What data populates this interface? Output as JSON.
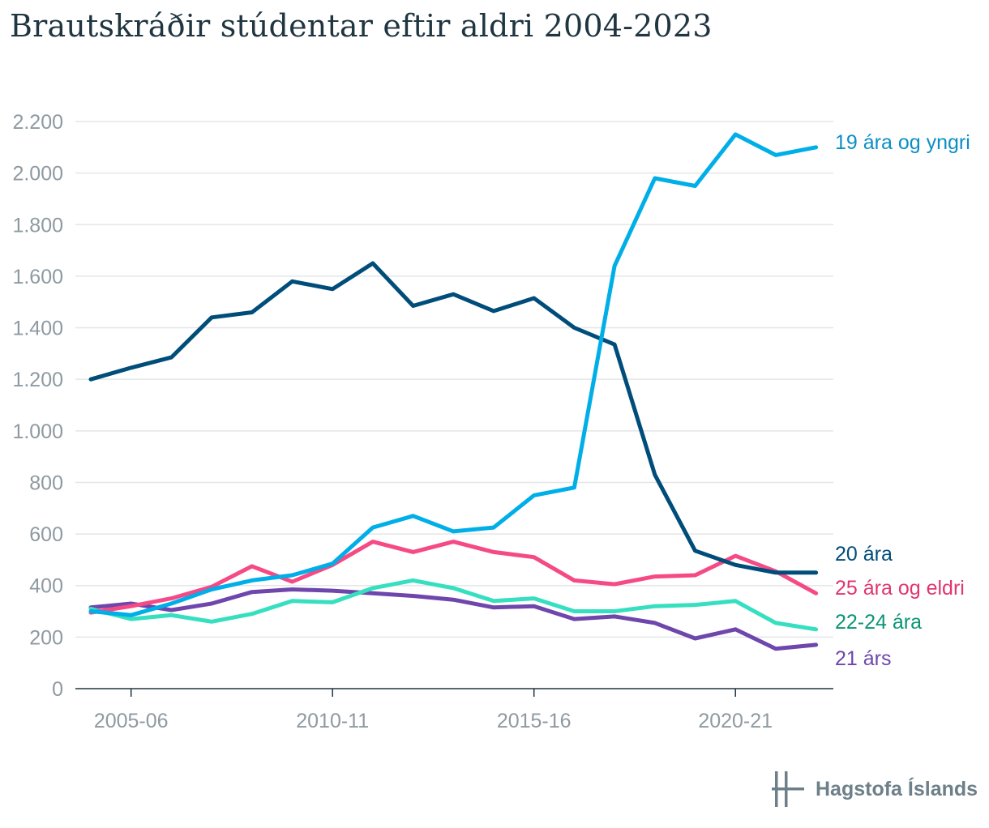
{
  "title": "Brautskráðir stúdentar eftir aldri 2004-2023",
  "logo": {
    "text": "Hagstofa Íslands"
  },
  "chart_data": {
    "type": "line",
    "title": "Brautskráðir stúdentar eftir aldri 2004-2023",
    "x": [
      "2004-05",
      "2005-06",
      "2006-07",
      "2007-08",
      "2008-09",
      "2009-10",
      "2010-11",
      "2011-12",
      "2012-13",
      "2013-14",
      "2014-15",
      "2015-16",
      "2016-17",
      "2017-18",
      "2018-19",
      "2019-20",
      "2020-21",
      "2021-22",
      "2022-23"
    ],
    "xticks": [
      "2005-06",
      "2010-11",
      "2015-16",
      "2020-21"
    ],
    "ylim": [
      0,
      2200
    ],
    "yticks": [
      0,
      200,
      400,
      600,
      800,
      1000,
      1200,
      1400,
      1600,
      1800,
      2000,
      2200
    ],
    "ytick_labels": [
      "0",
      "200",
      "400",
      "600",
      "800",
      "1.000",
      "1.200",
      "1.400",
      "1.600",
      "1.800",
      "2.000",
      "2.200"
    ],
    "grid": true,
    "legend": "inline-right",
    "series": [
      {
        "name": "19 ára og yngri",
        "color": "#00aee8",
        "label_color": "#0a8fc4",
        "values": [
          300,
          285,
          330,
          385,
          420,
          440,
          485,
          625,
          670,
          610,
          625,
          750,
          780,
          1640,
          1980,
          1950,
          2150,
          2070,
          2100
        ]
      },
      {
        "name": "20 ára",
        "color": "#004d7a",
        "label_color": "#004d7a",
        "values": [
          1200,
          1245,
          1285,
          1440,
          1460,
          1580,
          1550,
          1650,
          1485,
          1530,
          1465,
          1515,
          1400,
          1335,
          830,
          535,
          480,
          450,
          450
        ]
      },
      {
        "name": "25 ára og eldri",
        "color": "#f54a85",
        "label_color": "#e0356f",
        "values": [
          295,
          320,
          350,
          395,
          475,
          415,
          480,
          570,
          530,
          570,
          530,
          510,
          420,
          405,
          435,
          440,
          515,
          455,
          370
        ]
      },
      {
        "name": "22-24 ára",
        "color": "#36dfc0",
        "label_color": "#0a9475",
        "values": [
          310,
          270,
          285,
          260,
          290,
          340,
          335,
          390,
          420,
          390,
          340,
          350,
          300,
          300,
          320,
          325,
          340,
          255,
          230
        ]
      },
      {
        "name": "21 árs",
        "color": "#6e46ac",
        "label_color": "#6e46ac",
        "values": [
          315,
          330,
          305,
          330,
          375,
          385,
          380,
          370,
          360,
          345,
          315,
          320,
          270,
          280,
          255,
          195,
          230,
          155,
          170
        ]
      }
    ]
  }
}
